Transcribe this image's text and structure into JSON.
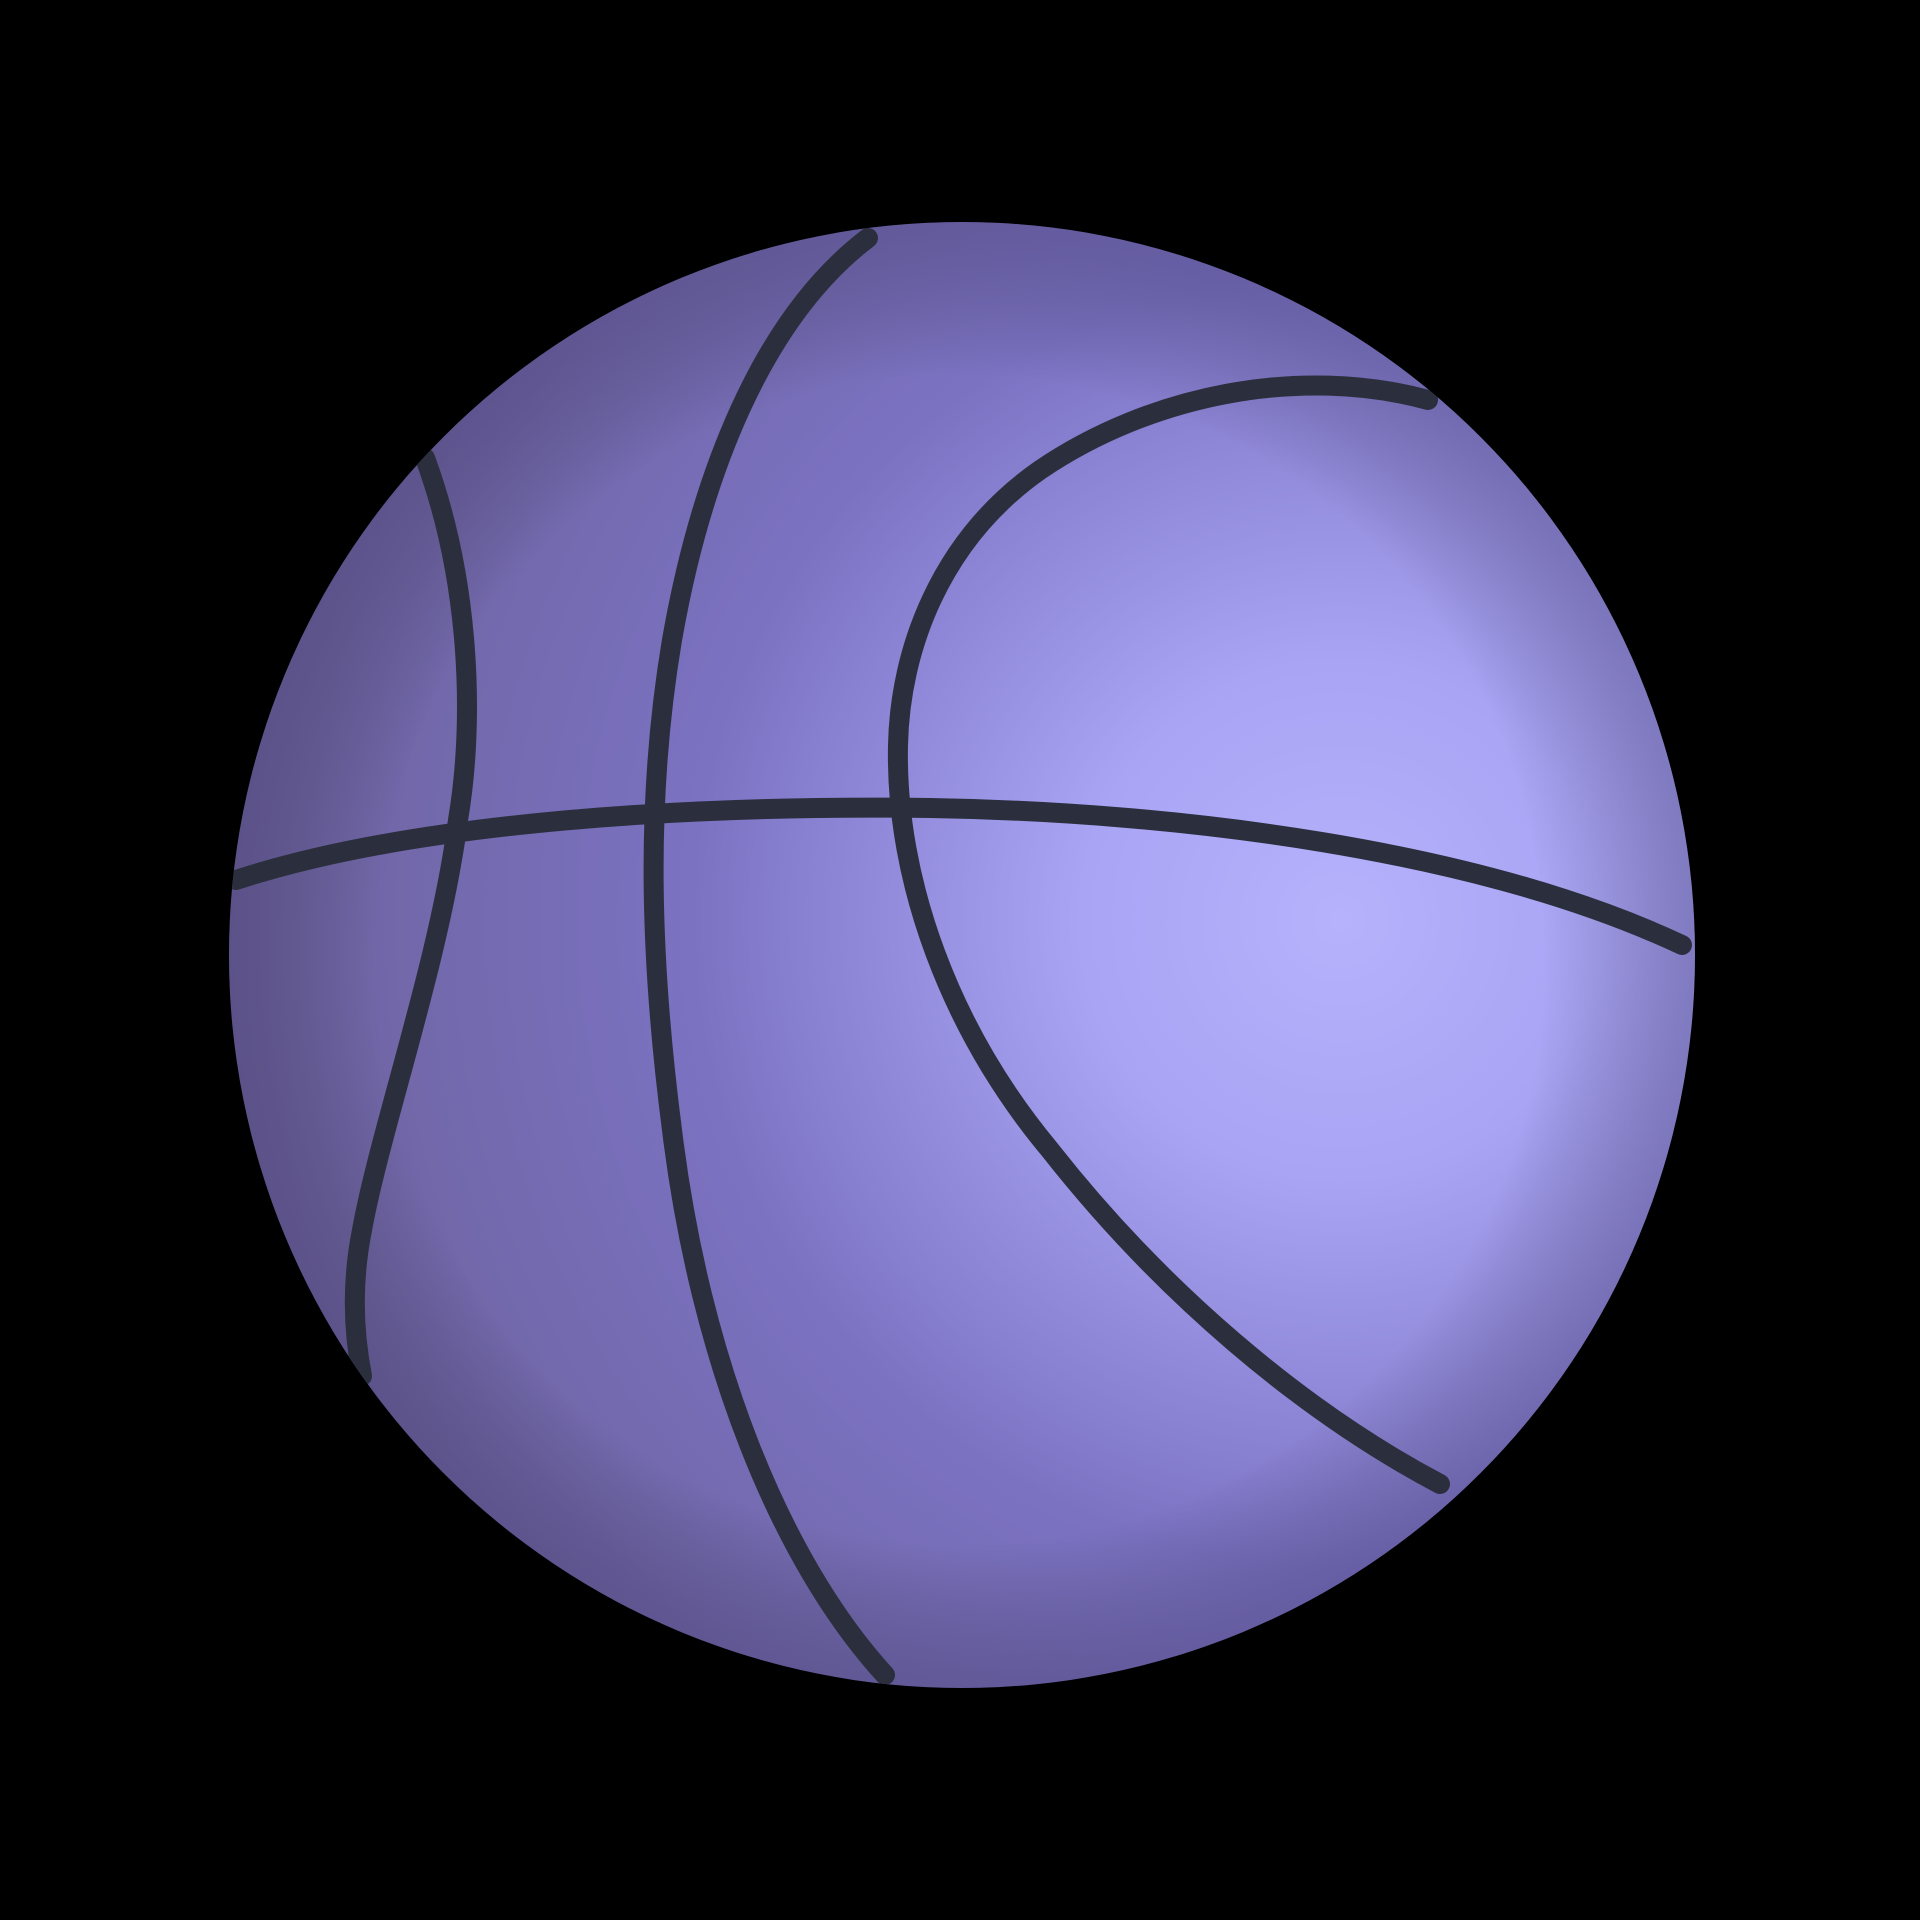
{
  "scene": {
    "background_color": "#000000",
    "subject": "basketball-icon",
    "colors": {
      "ball_shadow": "#6a5f96",
      "ball_mid": "#7b72c2",
      "ball_light": "#a9a4f4",
      "ball_highlight": "#b6b2fb",
      "seam": "#2b2f3d"
    }
  }
}
